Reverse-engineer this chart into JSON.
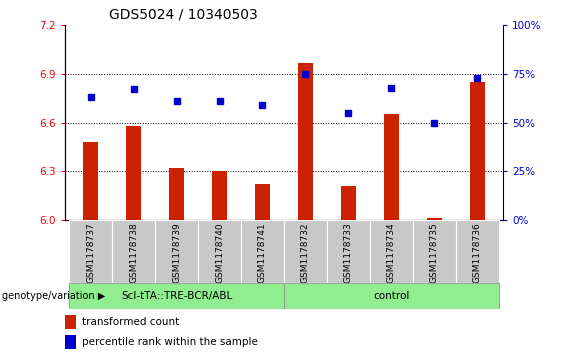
{
  "title": "GDS5024 / 10340503",
  "samples": [
    "GSM1178737",
    "GSM1178738",
    "GSM1178739",
    "GSM1178740",
    "GSM1178741",
    "GSM1178732",
    "GSM1178733",
    "GSM1178734",
    "GSM1178735",
    "GSM1178736"
  ],
  "transformed_count": [
    6.48,
    6.58,
    6.32,
    6.3,
    6.22,
    6.97,
    6.21,
    6.65,
    6.01,
    6.85
  ],
  "percentile_rank": [
    63,
    67,
    61,
    61,
    59,
    75,
    55,
    68,
    50,
    73
  ],
  "ylim_left": [
    6.0,
    7.2
  ],
  "ylim_right": [
    0,
    100
  ],
  "yticks_left": [
    6.0,
    6.3,
    6.6,
    6.9,
    7.2
  ],
  "yticks_right": [
    0,
    25,
    50,
    75,
    100
  ],
  "bar_color": "#cc2200",
  "dot_color": "#0000cc",
  "group1_label": "Scl-tTA::TRE-BCR/ABL",
  "group2_label": "control",
  "group1_count": 5,
  "group2_count": 5,
  "genotype_label": "genotype/variation",
  "legend_bar": "transformed count",
  "legend_dot": "percentile rank within the sample",
  "title_fontsize": 10,
  "tick_fontsize": 7.5,
  "label_fontsize": 8,
  "group_bg_color": "#90ee90",
  "sample_bg_color": "#c8c8c8",
  "right_axis_color": "#0000cc",
  "bar_width": 0.35
}
